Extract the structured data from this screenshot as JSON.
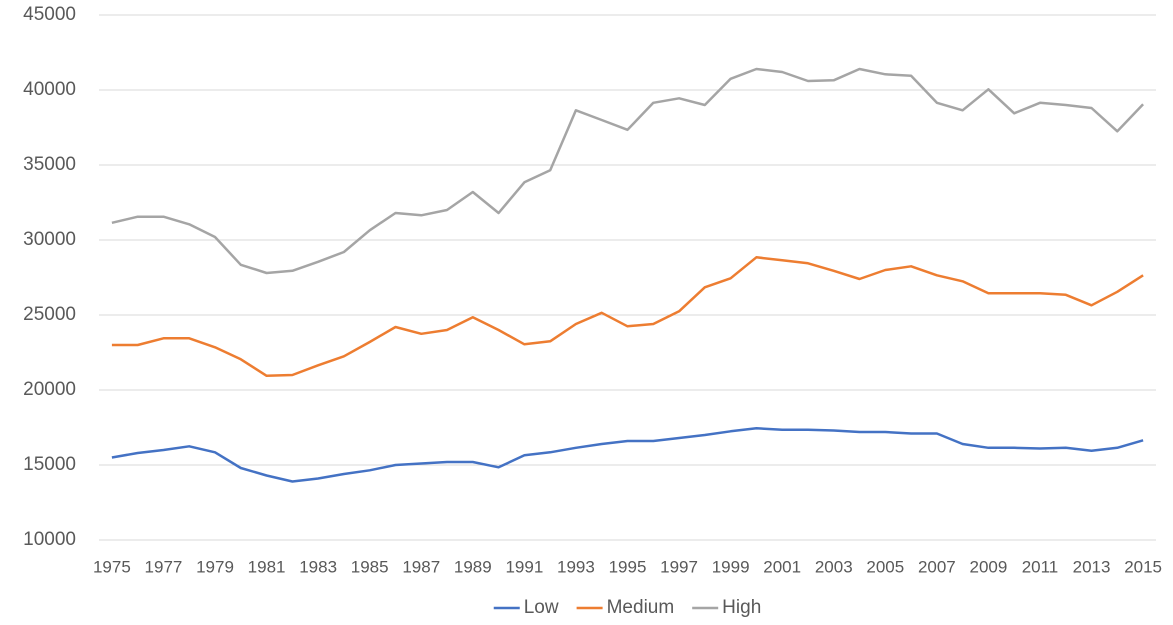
{
  "chart_data": {
    "type": "line",
    "x": [
      1975,
      1976,
      1977,
      1978,
      1979,
      1980,
      1981,
      1982,
      1983,
      1984,
      1985,
      1986,
      1987,
      1988,
      1989,
      1990,
      1991,
      1992,
      1993,
      1994,
      1995,
      1996,
      1997,
      1998,
      1999,
      2000,
      2001,
      2002,
      2003,
      2004,
      2005,
      2006,
      2007,
      2008,
      2009,
      2010,
      2011,
      2012,
      2013,
      2014,
      2015
    ],
    "xlim": [
      1974.5,
      2015.5
    ],
    "xticks": [
      1975,
      1977,
      1979,
      1981,
      1983,
      1985,
      1987,
      1989,
      1991,
      1993,
      1995,
      1997,
      1999,
      2001,
      2003,
      2005,
      2007,
      2009,
      2011,
      2013,
      2015
    ],
    "ylim": [
      10000,
      45000
    ],
    "yticks": [
      10000,
      15000,
      20000,
      25000,
      30000,
      35000,
      40000,
      45000
    ],
    "grid": true,
    "legend": "bottom",
    "series": [
      {
        "name": "Low",
        "color": "#4472c4",
        "values": [
          15500,
          15800,
          16000,
          16250,
          15850,
          14800,
          14300,
          13900,
          14100,
          14400,
          14650,
          15000,
          15100,
          15200,
          15200,
          14850,
          15650,
          15850,
          16150,
          16400,
          16600,
          16600,
          16800,
          17000,
          17250,
          17450,
          17350,
          17350,
          17300,
          17200,
          17200,
          17100,
          17100,
          16400,
          16150,
          16150,
          16100,
          16150,
          15950,
          16150,
          16650
        ]
      },
      {
        "name": "Medium",
        "color": "#ed7d31",
        "values": [
          23000,
          23000,
          23450,
          23450,
          22850,
          22050,
          20950,
          21000,
          21650,
          22250,
          23200,
          24200,
          23750,
          24000,
          24850,
          24000,
          23050,
          23250,
          24400,
          25150,
          24250,
          24400,
          25250,
          26850,
          27450,
          28850,
          28650,
          28450,
          27950,
          27400,
          28000,
          28250,
          27650,
          27250,
          26450,
          26450,
          26450,
          26350,
          25650,
          26550,
          27650
        ]
      },
      {
        "name": "High",
        "color": "#a5a5a5",
        "values": [
          31150,
          31550,
          31550,
          31050,
          30200,
          28350,
          27800,
          27950,
          28550,
          29200,
          30650,
          31800,
          31650,
          32000,
          33200,
          31800,
          33850,
          34650,
          38650,
          38000,
          37350,
          39150,
          39450,
          39000,
          40750,
          41400,
          41200,
          40600,
          40650,
          41400,
          41050,
          40950,
          39150,
          38650,
          40050,
          38450,
          39150,
          39000,
          38800,
          37250,
          39050
        ]
      }
    ]
  }
}
